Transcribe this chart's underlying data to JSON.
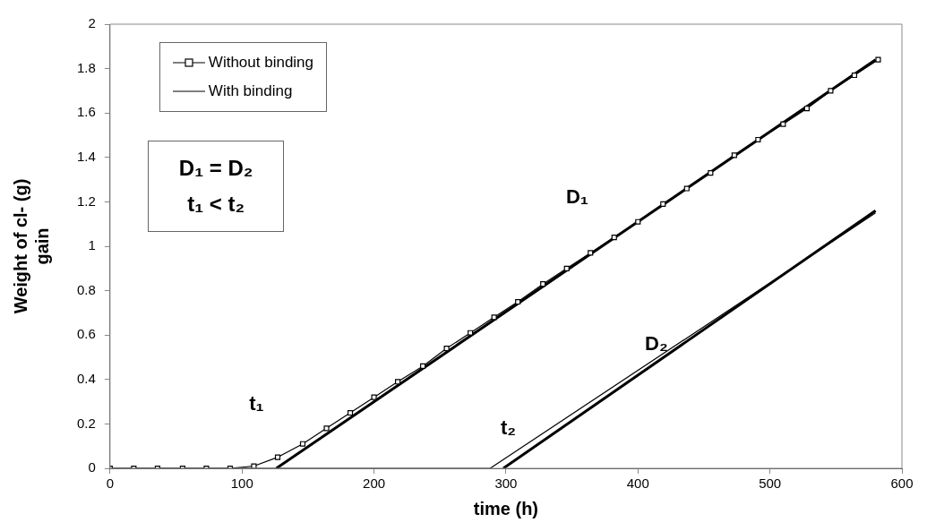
{
  "chart_data": {
    "type": "line",
    "xlabel": "time (h)",
    "ylabel": "Weight of cl- (g) gain",
    "xlim": [
      0,
      600
    ],
    "xticks": [
      0,
      100,
      200,
      300,
      400,
      500,
      600
    ],
    "ylim": [
      0,
      2
    ],
    "yticks": [
      0,
      0.2,
      0.4,
      0.6,
      0.8,
      1,
      1.2,
      1.4,
      1.6,
      1.8,
      2
    ],
    "grid": false,
    "legend": "top left",
    "series": [
      {
        "name": "Without binding",
        "color": "#000000",
        "marker": "square",
        "x": [
          0,
          18,
          36,
          55,
          73,
          91,
          109,
          127,
          146,
          164,
          182,
          200,
          218,
          237,
          255,
          273,
          291,
          309,
          328,
          346,
          364,
          382,
          400,
          419,
          437,
          455,
          473,
          491,
          510,
          528,
          546,
          564,
          582
        ],
        "values": [
          0,
          0,
          0,
          0,
          0,
          0,
          0.01,
          0.05,
          0.11,
          0.18,
          0.25,
          0.32,
          0.39,
          0.46,
          0.54,
          0.61,
          0.68,
          0.75,
          0.83,
          0.9,
          0.97,
          1.04,
          1.11,
          1.19,
          1.26,
          1.33,
          1.41,
          1.48,
          1.55,
          1.62,
          1.7,
          1.77,
          1.84
        ]
      },
      {
        "name": "With binding",
        "color": "#000000",
        "marker": "none",
        "x": [
          0,
          288,
          580
        ],
        "values": [
          0,
          0,
          1.15
        ]
      },
      {
        "color": "#000000",
        "marker": "none",
        "x": [
          126,
          580
        ],
        "values": [
          0,
          1.84
        ]
      },
      {
        "color": "#000000",
        "marker": "none",
        "x": [
          298,
          580
        ],
        "values": [
          0,
          1.16
        ]
      }
    ],
    "annotations": [
      "D₁",
      "D₂",
      "t₁",
      "t₂",
      "D₁ = D₂",
      "t₁ < t₂"
    ]
  }
}
